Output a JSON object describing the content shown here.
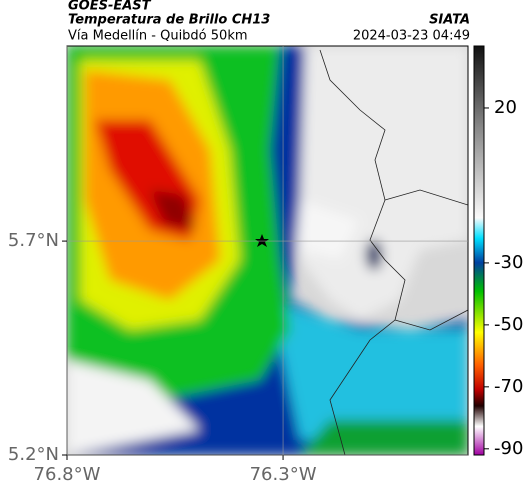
{
  "header": {
    "title": "GOES-EAST",
    "subtitle": "Temperatura de Brillo CH13",
    "source": "SIATA",
    "region": "Vía Medellín - Quibdó 50km",
    "timestamp": "2024-03-23 04:49"
  },
  "map": {
    "xlim": [
      -76.8,
      -75.872
    ],
    "ylim": [
      5.2,
      6.156
    ],
    "xticks": [
      {
        "value": -76.8,
        "label": "76.8°W"
      },
      {
        "value": -76.3,
        "label": "76.3°W"
      }
    ],
    "yticks": [
      {
        "value": 5.2,
        "label": "5.2°N"
      },
      {
        "value": 5.7,
        "label": "5.7°N"
      }
    ]
  },
  "colorbar": {
    "clim": [
      -92,
      40
    ],
    "ticks": [
      20,
      -30,
      -50,
      -70,
      -90
    ]
  }
}
